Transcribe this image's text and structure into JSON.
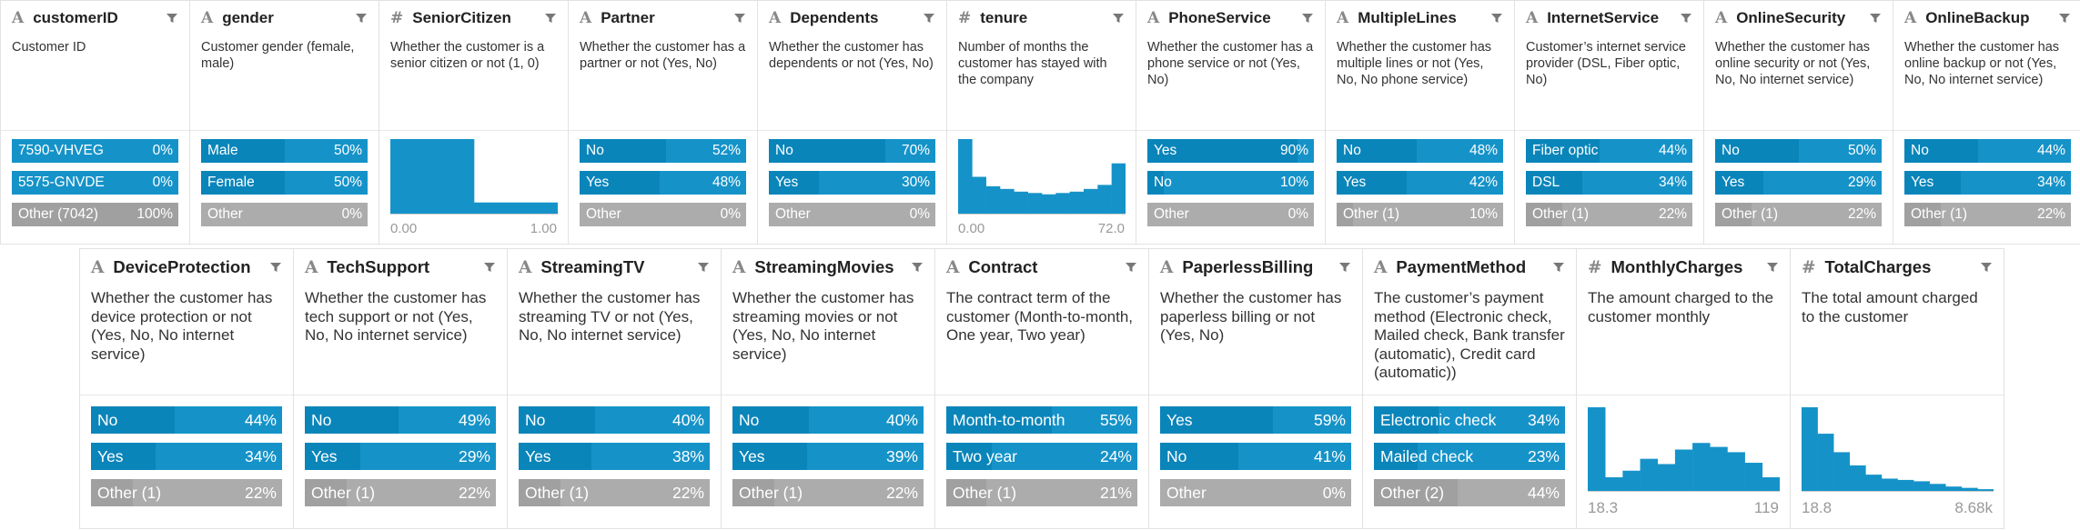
{
  "row1": [
    {
      "icon": "A",
      "name": "customerID",
      "description": "Customer ID",
      "categories": [
        {
          "label": "7590-VHVEG",
          "value": 0,
          "value_label": "0%"
        },
        {
          "label": "5575-GNVDE",
          "value": 0,
          "value_label": "0%"
        },
        {
          "label": "Other (7042)",
          "value": 100,
          "value_label": "100%"
        }
      ]
    },
    {
      "icon": "A",
      "name": "gender",
      "description": "Customer gender (female, male)",
      "categories": [
        {
          "label": "Male",
          "value": 50,
          "value_label": "50%"
        },
        {
          "label": "Female",
          "value": 50,
          "value_label": "50%"
        },
        {
          "label": "Other",
          "value": 0,
          "value_label": "0%"
        }
      ]
    },
    {
      "icon": "#",
      "name": "SeniorCitizen",
      "description": "Whether the customer is a senior citizen or not (1, 0)",
      "histogram": [
        100,
        16
      ],
      "min_label": "0.00",
      "max_label": "1.00"
    },
    {
      "icon": "A",
      "name": "Partner",
      "description": "Whether the customer has a partner or not (Yes, No)",
      "categories": [
        {
          "label": "No",
          "value": 52,
          "value_label": "52%"
        },
        {
          "label": "Yes",
          "value": 48,
          "value_label": "48%"
        },
        {
          "label": "Other",
          "value": 0,
          "value_label": "0%"
        }
      ]
    },
    {
      "icon": "A",
      "name": "Dependents",
      "description": "Whether the customer has dependents or not (Yes, No)",
      "categories": [
        {
          "label": "No",
          "value": 70,
          "value_label": "70%"
        },
        {
          "label": "Yes",
          "value": 30,
          "value_label": "30%"
        },
        {
          "label": "Other",
          "value": 0,
          "value_label": "0%"
        }
      ]
    },
    {
      "icon": "#",
      "name": "tenure",
      "description": "Number of months the customer has stayed with the company",
      "histogram": [
        56,
        28,
        21,
        19,
        17,
        16,
        15,
        16,
        17,
        19,
        22,
        38
      ],
      "min_label": "0.00",
      "max_label": "72.0"
    },
    {
      "icon": "A",
      "name": "PhoneService",
      "description": "Whether the customer has a phone service or not (Yes, No)",
      "categories": [
        {
          "label": "Yes",
          "value": 90,
          "value_label": "90%"
        },
        {
          "label": "No",
          "value": 10,
          "value_label": "10%"
        },
        {
          "label": "Other",
          "value": 0,
          "value_label": "0%"
        }
      ]
    },
    {
      "icon": "A",
      "name": "MultipleLines",
      "description": "Whether the customer has multiple lines or not (Yes, No, No phone service)",
      "categories": [
        {
          "label": "No",
          "value": 48,
          "value_label": "48%"
        },
        {
          "label": "Yes",
          "value": 42,
          "value_label": "42%"
        },
        {
          "label": "Other (1)",
          "value": 10,
          "value_label": "10%"
        }
      ]
    },
    {
      "icon": "A",
      "name": "InternetService",
      "description": "Customer’s internet service provider (DSL, Fiber optic, No)",
      "categories": [
        {
          "label": "Fiber optic",
          "value": 44,
          "value_label": "44%"
        },
        {
          "label": "DSL",
          "value": 34,
          "value_label": "34%"
        },
        {
          "label": "Other (1)",
          "value": 22,
          "value_label": "22%"
        }
      ]
    },
    {
      "icon": "A",
      "name": "OnlineSecurity",
      "description": "Whether the customer has online security or not (Yes, No, No internet service)",
      "categories": [
        {
          "label": "No",
          "value": 50,
          "value_label": "50%"
        },
        {
          "label": "Yes",
          "value": 29,
          "value_label": "29%"
        },
        {
          "label": "Other (1)",
          "value": 22,
          "value_label": "22%"
        }
      ]
    },
    {
      "icon": "A",
      "name": "OnlineBackup",
      "description": "Whether the customer has online backup or not (Yes, No, No internet service)",
      "categories": [
        {
          "label": "No",
          "value": 44,
          "value_label": "44%"
        },
        {
          "label": "Yes",
          "value": 34,
          "value_label": "34%"
        },
        {
          "label": "Other (1)",
          "value": 22,
          "value_label": "22%"
        }
      ]
    }
  ],
  "row2": [
    {
      "icon": "A",
      "name": "DeviceProtection",
      "description": "Whether the customer has device protection or not (Yes, No, No internet service)",
      "categories": [
        {
          "label": "No",
          "value": 44,
          "value_label": "44%"
        },
        {
          "label": "Yes",
          "value": 34,
          "value_label": "34%"
        },
        {
          "label": "Other (1)",
          "value": 22,
          "value_label": "22%"
        }
      ]
    },
    {
      "icon": "A",
      "name": "TechSupport",
      "description": "Whether the customer has tech support or not (Yes, No, No internet service)",
      "categories": [
        {
          "label": "No",
          "value": 49,
          "value_label": "49%"
        },
        {
          "label": "Yes",
          "value": 29,
          "value_label": "29%"
        },
        {
          "label": "Other (1)",
          "value": 22,
          "value_label": "22%"
        }
      ]
    },
    {
      "icon": "A",
      "name": "StreamingTV",
      "description": "Whether the customer has streaming TV or not (Yes, No, No internet service)",
      "categories": [
        {
          "label": "No",
          "value": 40,
          "value_label": "40%"
        },
        {
          "label": "Yes",
          "value": 38,
          "value_label": "38%"
        },
        {
          "label": "Other (1)",
          "value": 22,
          "value_label": "22%"
        }
      ]
    },
    {
      "icon": "A",
      "name": "StreamingMovies",
      "description": "Whether the customer has streaming movies or not (Yes, No, No internet service)",
      "categories": [
        {
          "label": "No",
          "value": 40,
          "value_label": "40%"
        },
        {
          "label": "Yes",
          "value": 39,
          "value_label": "39%"
        },
        {
          "label": "Other (1)",
          "value": 22,
          "value_label": "22%"
        }
      ]
    },
    {
      "icon": "A",
      "name": "Contract",
      "description": "The contract term of the customer (Month-to-month, One year, Two year)",
      "categories": [
        {
          "label": "Month-to-month",
          "value": 55,
          "value_label": "55%"
        },
        {
          "label": "Two year",
          "value": 24,
          "value_label": "24%"
        },
        {
          "label": "Other (1)",
          "value": 21,
          "value_label": "21%"
        }
      ]
    },
    {
      "icon": "A",
      "name": "PaperlessBilling",
      "description": "Whether the customer has paperless billing or not (Yes, No)",
      "categories": [
        {
          "label": "Yes",
          "value": 59,
          "value_label": "59%"
        },
        {
          "label": "No",
          "value": 41,
          "value_label": "41%"
        },
        {
          "label": "Other",
          "value": 0,
          "value_label": "0%"
        }
      ]
    },
    {
      "icon": "A",
      "name": "PaymentMethod",
      "description": "The customer’s payment method (Electronic check, Mailed check, Bank transfer (automatic), Credit card (automatic))",
      "categories": [
        {
          "label": "Electronic check",
          "value": 34,
          "value_label": "34%"
        },
        {
          "label": "Mailed check",
          "value": 23,
          "value_label": "23%"
        },
        {
          "label": "Other (2)",
          "value": 44,
          "value_label": "44%"
        }
      ]
    },
    {
      "icon": "#",
      "name": "MonthlyCharges",
      "description": "The amount charged to the customer monthly",
      "histogram": [
        64,
        11,
        16,
        25,
        21,
        32,
        37,
        34,
        30,
        22,
        11
      ],
      "min_label": "18.3",
      "max_label": "119"
    },
    {
      "icon": "#",
      "name": "TotalCharges",
      "description": "The total amount charged to the customer",
      "histogram": [
        64,
        44,
        30,
        20,
        13,
        10,
        9,
        8,
        6,
        4,
        3,
        2
      ],
      "min_label": "18.8",
      "max_label": "8.68k"
    }
  ]
}
